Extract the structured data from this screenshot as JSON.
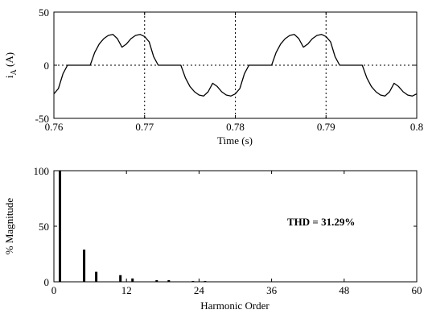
{
  "chart_data": [
    {
      "type": "line",
      "xlabel": "Time (s)",
      "ylabel_main": "i",
      "ylabel_sub": "A",
      "ylabel_unit": " (A)",
      "xlim": [
        0.76,
        0.8
      ],
      "ylim": [
        -50,
        50
      ],
      "xticks": [
        0.76,
        0.77,
        0.78,
        0.79,
        0.8
      ],
      "xtick_labels": [
        "0.76",
        "0.77",
        "0.78",
        "0.79",
        "0.8"
      ],
      "yticks": [
        -50,
        0,
        50
      ],
      "ytick_labels": [
        "-50",
        "0",
        "50"
      ],
      "grid": "dotted",
      "series": [
        {
          "x": [
            0.76,
            0.7605,
            0.761,
            0.7615,
            0.762,
            0.7625,
            0.763,
            0.7635,
            0.764,
            0.7645,
            0.765,
            0.7655,
            0.766,
            0.7665,
            0.767,
            0.7675,
            0.768,
            0.7685,
            0.769,
            0.7695,
            0.77,
            0.7705,
            0.771,
            0.7715,
            0.772,
            0.7725,
            0.773,
            0.7735,
            0.774,
            0.7745,
            0.775,
            0.7755,
            0.776,
            0.7765,
            0.777,
            0.7775,
            0.778,
            0.7785,
            0.779,
            0.7795,
            0.78,
            0.7805,
            0.781,
            0.7815,
            0.782,
            0.7825,
            0.783,
            0.7835,
            0.784,
            0.7845,
            0.785,
            0.7855,
            0.786,
            0.7865,
            0.787,
            0.7875,
            0.788,
            0.7885,
            0.789,
            0.7895,
            0.79,
            0.7905,
            0.791,
            0.7915,
            0.792,
            0.7925,
            0.793,
            0.7935,
            0.794,
            0.7945,
            0.795,
            0.7955,
            0.796,
            0.7965,
            0.797,
            0.7975,
            0.798,
            0.7985,
            0.799,
            0.7995,
            0.8
          ],
          "y": [
            -27,
            -22,
            -8,
            0,
            0,
            0,
            0,
            0,
            0,
            12,
            20,
            25,
            28,
            29,
            25,
            17,
            20,
            25,
            28,
            29,
            27,
            22,
            8,
            0,
            0,
            0,
            0,
            0,
            0,
            -12,
            -20,
            -25,
            -28,
            -29,
            -25,
            -17,
            -20,
            -25,
            -28,
            -29,
            -27,
            -22,
            -8,
            0,
            0,
            0,
            0,
            0,
            0,
            12,
            20,
            25,
            28,
            29,
            25,
            17,
            20,
            25,
            28,
            29,
            27,
            22,
            8,
            0,
            0,
            0,
            0,
            0,
            0,
            -12,
            -20,
            -25,
            -28,
            -29,
            -25,
            -17,
            -20,
            -25,
            -28,
            -29,
            -27
          ]
        }
      ]
    },
    {
      "type": "bar",
      "xlabel": "Harmonic Order",
      "ylabel": "% Magnitude",
      "xlim": [
        0,
        60
      ],
      "ylim": [
        0,
        100
      ],
      "xticks": [
        0,
        12,
        24,
        36,
        48,
        60
      ],
      "xtick_labels": [
        "0",
        "12",
        "24",
        "36",
        "48",
        "60"
      ],
      "yticks": [
        0,
        50,
        100
      ],
      "ytick_labels": [
        "0",
        "50",
        "100"
      ],
      "annotation": "THD = 31.29%",
      "categories": [
        1,
        5,
        7,
        11,
        13,
        17,
        19,
        23,
        25
      ],
      "values": [
        100,
        29,
        9,
        6,
        3,
        1.5,
        1.5,
        0.7,
        0.7
      ]
    }
  ]
}
